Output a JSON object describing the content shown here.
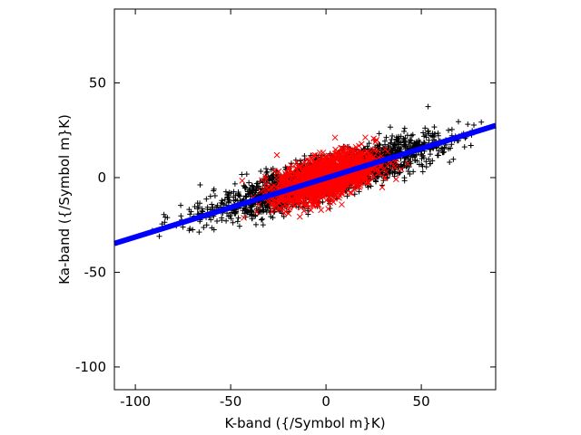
{
  "chart_data": {
    "type": "scatter",
    "xlabel": "K-band ({/Symbol m}K)",
    "ylabel": "Ka-band ({/Symbol m}K)",
    "xlim": [
      -111,
      89
    ],
    "ylim": [
      -112,
      89
    ],
    "xticks": [
      -100,
      -50,
      0,
      50
    ],
    "yticks": [
      -100,
      -50,
      0,
      50
    ],
    "xtick_labels": [
      "-100",
      "-50",
      "0",
      "50"
    ],
    "ytick_labels": [
      "-100",
      "-50",
      "0",
      "50"
    ],
    "grid": false,
    "legend": "none",
    "series": [
      {
        "marker": "plus",
        "color": "#000000",
        "description": "broad population",
        "count": 2600,
        "center": [
          0,
          0
        ],
        "x_std": 28,
        "slope": 0.3,
        "y_residual_std": 5
      },
      {
        "marker": "x",
        "color": "#ff0000",
        "description": "dense core",
        "count": 1700,
        "center": [
          0,
          0
        ],
        "x_std": 13,
        "slope": 0.3,
        "y_residual_std": 5.5
      },
      {
        "marker": "line",
        "color": "#0000ff",
        "description": "fit line",
        "x": [
          -111,
          89
        ],
        "y": [
          -34.8,
          27.5
        ]
      }
    ]
  }
}
